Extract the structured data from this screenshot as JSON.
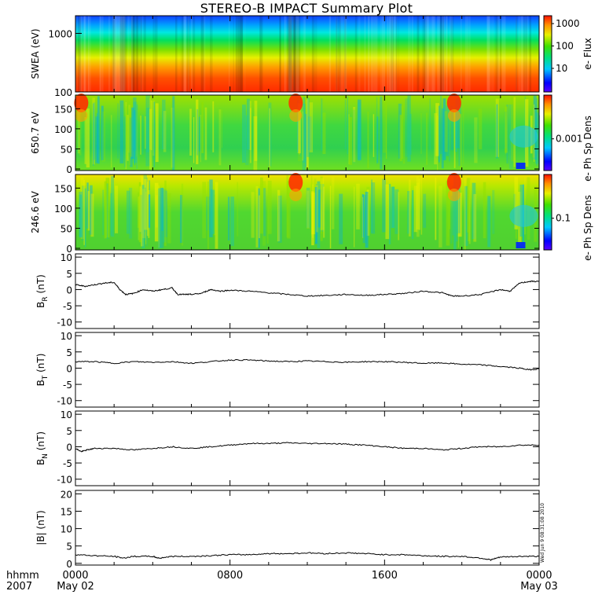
{
  "title": "STEREO-B IMPACT Summary Plot",
  "stamp": "Wed Jun 9 08:31:08 2010",
  "x_axis": {
    "ticks": [
      "0000",
      "0800",
      "1600",
      "0000"
    ],
    "date_labels": [
      "May 02",
      "",
      "",
      "May 03"
    ],
    "corner_top": "hhmm",
    "corner_bottom": "2007"
  },
  "colors": {
    "line": "#000000",
    "frame": "#000000"
  },
  "chart_data": [
    {
      "type": "heatmap",
      "name": "swea",
      "ylabel": "SWEA (eV)",
      "yscale": "log",
      "ylim": [
        100,
        2000
      ],
      "y_ticks": [
        "1000",
        "100"
      ],
      "colorbar": {
        "label": "e- Flux",
        "scale": "log",
        "ticks": [
          "1000",
          "100",
          "10"
        ]
      },
      "events_hours": [
        11.3,
        19.5
      ]
    },
    {
      "type": "heatmap",
      "name": "pad650",
      "ylabel": "650.7 eV",
      "ylim": [
        0,
        180
      ],
      "y_ticks": [
        "150",
        "100",
        "50",
        "0"
      ],
      "colorbar": {
        "label": "e- Ph Sp Dens",
        "scale": "log",
        "ticks": [
          "0.001"
        ]
      },
      "events_hours": [
        0.3,
        11.4,
        19.6
      ]
    },
    {
      "type": "heatmap",
      "name": "pad246",
      "ylabel": "246.6 eV",
      "ylim": [
        0,
        180
      ],
      "y_ticks": [
        "150",
        "100",
        "50",
        "0"
      ],
      "colorbar": {
        "label": "e- Ph Sp Dens",
        "scale": "log",
        "ticks": [
          "0.1"
        ]
      },
      "events_hours": [
        11.4,
        19.6
      ]
    },
    {
      "type": "line",
      "name": "br",
      "ylabel": "B",
      "ylabel_sub": "R",
      "ylabel_unit": "(nT)",
      "ylim": [
        -12,
        11
      ],
      "y_ticks": [
        "10",
        "5",
        "0",
        "-5",
        "-10"
      ],
      "x": [
        0,
        0.5,
        1,
        1.5,
        2,
        2.3,
        2.6,
        3,
        3.5,
        4,
        4.5,
        5,
        5.3,
        5.7,
        6,
        6.5,
        7,
        7.5,
        8,
        9,
        10,
        11,
        12,
        13,
        14,
        15,
        16,
        17,
        18,
        19,
        19.5,
        20,
        21,
        22,
        22.5,
        23,
        23.5,
        24
      ],
      "y": [
        1.5,
        1,
        1.5,
        2,
        2.2,
        0,
        -1.5,
        -1.2,
        0,
        -0.5,
        0,
        0.5,
        -1.5,
        -1.5,
        -1.5,
        -1.2,
        0,
        -0.5,
        -0.2,
        -0.5,
        -1,
        -1.5,
        -2,
        -1.8,
        -1.5,
        -1.8,
        -1.5,
        -1.2,
        -0.5,
        -1,
        -2,
        -2,
        -1.5,
        0,
        -0.5,
        2,
        2.5,
        2.5
      ]
    },
    {
      "type": "line",
      "name": "bt",
      "ylabel": "B",
      "ylabel_sub": "T",
      "ylabel_unit": "(nT)",
      "ylim": [
        -12,
        11
      ],
      "y_ticks": [
        "10",
        "5",
        "0",
        "-5",
        "-10"
      ],
      "x": [
        0,
        1,
        2,
        3,
        4,
        5,
        6,
        7,
        8,
        9,
        10,
        11,
        12,
        13,
        14,
        15,
        16,
        17,
        18,
        19,
        20,
        21,
        22,
        23,
        23.5,
        24
      ],
      "y": [
        2,
        2,
        1.5,
        2,
        1.8,
        2,
        1.5,
        2,
        2.5,
        2.5,
        2.2,
        2,
        2.2,
        2,
        1.8,
        2,
        2,
        1.8,
        1.5,
        1.6,
        1.2,
        1,
        0.5,
        0,
        -0.5,
        -0.2
      ]
    },
    {
      "type": "line",
      "name": "bn",
      "ylabel": "B",
      "ylabel_sub": "N",
      "ylabel_unit": "(nT)",
      "ylim": [
        -12,
        11
      ],
      "y_ticks": [
        "10",
        "5",
        "0",
        "-5",
        "-10"
      ],
      "x": [
        0,
        0.3,
        0.6,
        1,
        2,
        3,
        4,
        5,
        6,
        7,
        8,
        9,
        10,
        11,
        12,
        13,
        14,
        15,
        16,
        17,
        18,
        19,
        20,
        21,
        22,
        23,
        24
      ],
      "y": [
        -0.5,
        -1.5,
        -1,
        -0.5,
        -0.5,
        -1,
        -0.5,
        0,
        -0.5,
        0,
        0.5,
        1,
        1,
        1.2,
        1,
        1,
        0.8,
        0.5,
        0,
        -0.5,
        -0.5,
        -1,
        -0.5,
        0,
        0,
        0.5,
        0.5
      ]
    },
    {
      "type": "line",
      "name": "bmag",
      "ylabel": "|B| (nT)",
      "ylim": [
        -0.5,
        21
      ],
      "y_ticks": [
        "20",
        "15",
        "10",
        "5",
        "0"
      ],
      "x": [
        0,
        1,
        2,
        2.5,
        3,
        4,
        4.3,
        5,
        6,
        7,
        8,
        9,
        10,
        11,
        12,
        13,
        14,
        15,
        16,
        17,
        18,
        19,
        20,
        21,
        21.5,
        22,
        23,
        24
      ],
      "y": [
        2.5,
        2.2,
        2,
        1.5,
        2,
        2,
        1.5,
        2,
        2,
        2.2,
        2.5,
        2.5,
        2.8,
        2.8,
        3,
        2.8,
        3,
        2.8,
        2.5,
        2.5,
        2.2,
        2,
        2,
        1.5,
        1,
        1.8,
        2,
        2
      ]
    }
  ]
}
